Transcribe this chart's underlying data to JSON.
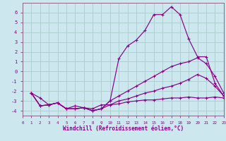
{
  "xlabel": "Windchill (Refroidissement éolien,°C)",
  "bg_color": "#cce8ee",
  "grid_color": "#aacccc",
  "line_color": "#880088",
  "spine_color": "#886688",
  "xlim": [
    0,
    23
  ],
  "ylim": [
    -4.5,
    7.0
  ],
  "xticks": [
    0,
    1,
    2,
    3,
    4,
    5,
    6,
    7,
    8,
    9,
    10,
    11,
    12,
    13,
    14,
    15,
    16,
    17,
    18,
    19,
    20,
    21,
    22,
    23
  ],
  "yticks": [
    -4,
    -3,
    -2,
    -1,
    0,
    1,
    2,
    3,
    4,
    5,
    6
  ],
  "line1_x": [
    1,
    2,
    3,
    4,
    5,
    6,
    7,
    8,
    9,
    10,
    11,
    12,
    13,
    14,
    15,
    16,
    17,
    18,
    19,
    20,
    21,
    22,
    23
  ],
  "line1_y": [
    -2.2,
    -2.7,
    -3.4,
    -3.2,
    -3.8,
    -3.5,
    -3.7,
    -3.8,
    -3.4,
    -3.4,
    -3.3,
    -3.1,
    -3.0,
    -2.9,
    -2.9,
    -2.8,
    -2.7,
    -2.7,
    -2.6,
    -2.7,
    -2.7,
    -2.6,
    -2.7
  ],
  "line2_x": [
    1,
    2,
    3,
    4,
    5,
    6,
    7,
    8,
    9,
    10,
    11,
    12,
    13,
    14,
    15,
    16,
    17,
    18,
    19,
    20,
    21,
    22,
    23
  ],
  "line2_y": [
    -2.2,
    -3.5,
    -3.4,
    -3.2,
    -3.8,
    -3.8,
    -3.7,
    -4.0,
    -3.8,
    -3.4,
    -3.0,
    -2.8,
    -2.5,
    -2.2,
    -2.0,
    -1.7,
    -1.5,
    -1.2,
    -0.8,
    -0.3,
    -0.7,
    -1.5,
    -2.5
  ],
  "line3_x": [
    1,
    2,
    3,
    4,
    5,
    6,
    7,
    8,
    9,
    10,
    11,
    12,
    13,
    14,
    15,
    16,
    17,
    18,
    19,
    20,
    21,
    22,
    23
  ],
  "line3_y": [
    -2.2,
    -3.5,
    -3.4,
    -3.2,
    -3.8,
    -3.8,
    -3.7,
    -4.0,
    -3.8,
    -3.0,
    -2.5,
    -2.0,
    -1.5,
    -1.0,
    -0.5,
    0.0,
    0.5,
    0.8,
    1.0,
    1.4,
    0.8,
    -0.5,
    -2.2
  ],
  "line4_x": [
    1,
    2,
    3,
    4,
    5,
    6,
    7,
    8,
    9,
    10,
    11,
    12,
    13,
    14,
    15,
    16,
    17,
    18,
    19,
    20,
    21,
    22,
    23
  ],
  "line4_y": [
    -2.2,
    -3.5,
    -3.4,
    -3.2,
    -3.8,
    -3.8,
    -3.7,
    -4.0,
    -3.8,
    -3.0,
    1.3,
    2.6,
    3.2,
    4.2,
    5.8,
    5.8,
    6.6,
    5.8,
    3.3,
    1.5,
    1.5,
    -1.2,
    -2.5
  ]
}
